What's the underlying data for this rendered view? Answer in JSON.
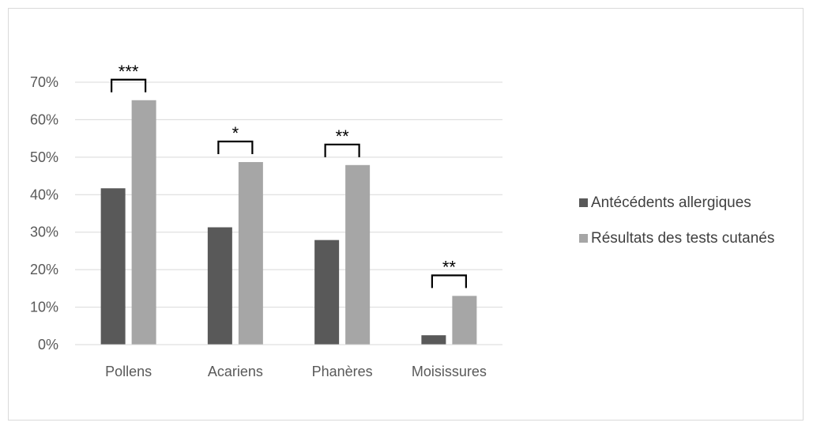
{
  "chart_data": {
    "type": "bar",
    "title": "",
    "xlabel": "",
    "ylabel": "",
    "categories": [
      "Pollens",
      "Acariens",
      "Phanères",
      "Moisissures"
    ],
    "series": [
      {
        "name": "Antécédents allergiques",
        "color": "#595959",
        "values": [
          41.7,
          31.3,
          27.9,
          2.5
        ]
      },
      {
        "name": "Résultats des tests cutanés",
        "color": "#a6a6a6",
        "values": [
          65.2,
          48.7,
          47.9,
          13.0
        ]
      }
    ],
    "ylim": [
      0,
      70
    ],
    "yticks": [
      0,
      10,
      20,
      30,
      40,
      50,
      60,
      70
    ],
    "ytick_labels": [
      "0%",
      "10%",
      "20%",
      "30%",
      "40%",
      "50%",
      "60%",
      "70%"
    ],
    "significance": [
      "***",
      "*",
      "**",
      "**"
    ],
    "grid": true,
    "legend_position": "right"
  }
}
